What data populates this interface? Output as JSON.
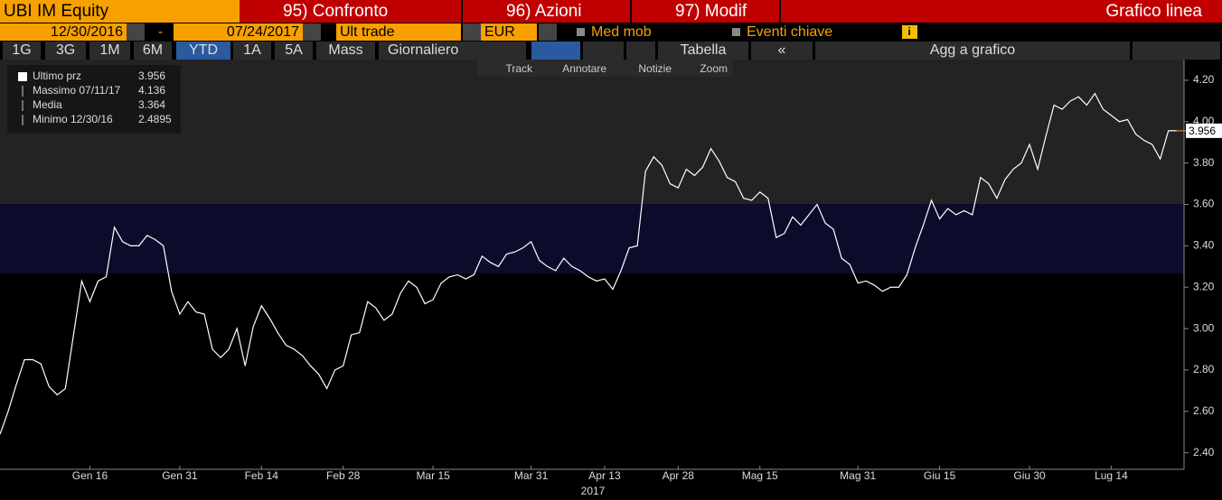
{
  "toolbar": {
    "security": "UBI IM Equity",
    "buttons": [
      "95) Confronto",
      "96) Azioni",
      "97) Modif"
    ],
    "view": "Grafico linea",
    "start_date": "12/30/2016",
    "separator": "-",
    "end_date": "07/24/2017",
    "field": "Ult trade",
    "currency": "EUR",
    "options": [
      "Med mob",
      "Eventi chiave"
    ],
    "periods": [
      "1G",
      "3G",
      "1M",
      "6M",
      "YTD",
      "1A",
      "5A",
      "Mass"
    ],
    "frequency": "Giornaliero",
    "table": "Tabella",
    "collapse": "«",
    "add": "Agg a grafico",
    "chart_tools": [
      "Track",
      "Annotare",
      "Notizie",
      "Zoom"
    ]
  },
  "chart_data": {
    "type": "line",
    "xlabel": "2017",
    "categories": [
      null,
      null,
      null,
      null,
      null,
      null,
      null,
      null,
      null,
      null,
      null,
      "Gen 16",
      null,
      null,
      null,
      null,
      null,
      null,
      null,
      null,
      null,
      null,
      "Gen 31",
      null,
      null,
      null,
      null,
      null,
      null,
      null,
      null,
      null,
      "Feb 14",
      null,
      null,
      null,
      null,
      null,
      null,
      null,
      null,
      null,
      "Feb 28",
      null,
      null,
      null,
      null,
      null,
      null,
      null,
      null,
      null,
      null,
      "Mar 15",
      null,
      null,
      null,
      null,
      null,
      null,
      null,
      null,
      null,
      null,
      null,
      "Mar 31",
      null,
      null,
      null,
      null,
      null,
      null,
      null,
      null,
      "Apr 13",
      null,
      null,
      null,
      null,
      null,
      null,
      null,
      null,
      "Apr 28",
      null,
      null,
      null,
      null,
      null,
      null,
      null,
      null,
      null,
      "Mag 15",
      null,
      null,
      null,
      null,
      null,
      null,
      null,
      null,
      null,
      null,
      null,
      "Mag 31",
      null,
      null,
      null,
      null,
      null,
      null,
      null,
      null,
      null,
      "Giu 15",
      null,
      null,
      null,
      null,
      null,
      null,
      null,
      null,
      null,
      null,
      "Giu 30",
      null,
      null,
      null,
      null,
      null,
      null,
      null,
      null,
      null,
      "Lug 14",
      null,
      null,
      null,
      null,
      null,
      null,
      null,
      null
    ],
    "series": [
      {
        "name": "Ultimo prz",
        "color": "#ffffff",
        "values": [
          2.4895,
          2.6,
          2.73,
          2.85,
          2.85,
          2.83,
          2.72,
          2.68,
          2.71,
          2.97,
          3.23,
          3.13,
          3.23,
          3.25,
          3.49,
          3.42,
          3.4,
          3.4,
          3.45,
          3.43,
          3.4,
          3.18,
          3.07,
          3.13,
          3.08,
          3.07,
          2.9,
          2.86,
          2.9,
          3.0,
          2.82,
          3.01,
          3.11,
          3.05,
          2.98,
          2.92,
          2.9,
          2.87,
          2.82,
          2.78,
          2.71,
          2.8,
          2.82,
          2.97,
          2.98,
          3.13,
          3.1,
          3.04,
          3.07,
          3.17,
          3.23,
          3.2,
          3.12,
          3.14,
          3.22,
          3.25,
          3.26,
          3.24,
          3.26,
          3.35,
          3.32,
          3.3,
          3.36,
          3.37,
          3.39,
          3.42,
          3.33,
          3.3,
          3.28,
          3.34,
          3.3,
          3.28,
          3.25,
          3.23,
          3.24,
          3.19,
          3.28,
          3.39,
          3.4,
          3.76,
          3.83,
          3.79,
          3.7,
          3.68,
          3.77,
          3.74,
          3.78,
          3.87,
          3.81,
          3.73,
          3.71,
          3.63,
          3.62,
          3.66,
          3.63,
          3.44,
          3.46,
          3.54,
          3.5,
          3.55,
          3.6,
          3.51,
          3.48,
          3.34,
          3.31,
          3.22,
          3.23,
          3.21,
          3.18,
          3.2,
          3.2,
          3.26,
          3.39,
          3.5,
          3.62,
          3.53,
          3.58,
          3.55,
          3.57,
          3.55,
          3.73,
          3.7,
          3.63,
          3.72,
          3.77,
          3.8,
          3.89,
          3.77,
          3.93,
          4.08,
          4.06,
          4.1,
          4.12,
          4.08,
          4.136,
          4.06,
          4.03,
          4.0,
          4.01,
          3.94,
          3.91,
          3.89,
          3.82,
          3.956,
          3.956
        ]
      }
    ],
    "last_color": "#f7a000",
    "stats": [
      {
        "label": "Ultimo prz",
        "value": 3.956
      },
      {
        "label": "Massimo 07/11/17",
        "value": 4.136
      },
      {
        "label": "Media",
        "value": 3.364
      },
      {
        "label": "Minimo 12/30/16",
        "value": 2.4895
      }
    ],
    "ylim": [
      2.32,
      4.3
    ],
    "yticks": [
      {
        "value": 2.4,
        "label": "2.40"
      },
      {
        "value": 2.6,
        "label": "2.60"
      },
      {
        "value": 2.8,
        "label": "2.80"
      },
      {
        "value": 3.0,
        "label": "3.00"
      },
      {
        "value": 3.2,
        "label": "3.20"
      },
      {
        "value": 3.4,
        "label": "3.40"
      },
      {
        "value": 3.6,
        "label": "3.60"
      },
      {
        "value": 3.8,
        "label": "3.80"
      },
      {
        "value": 4.0,
        "label": "4.00"
      },
      {
        "value": 4.2,
        "label": "4.20"
      }
    ],
    "grid": false
  }
}
